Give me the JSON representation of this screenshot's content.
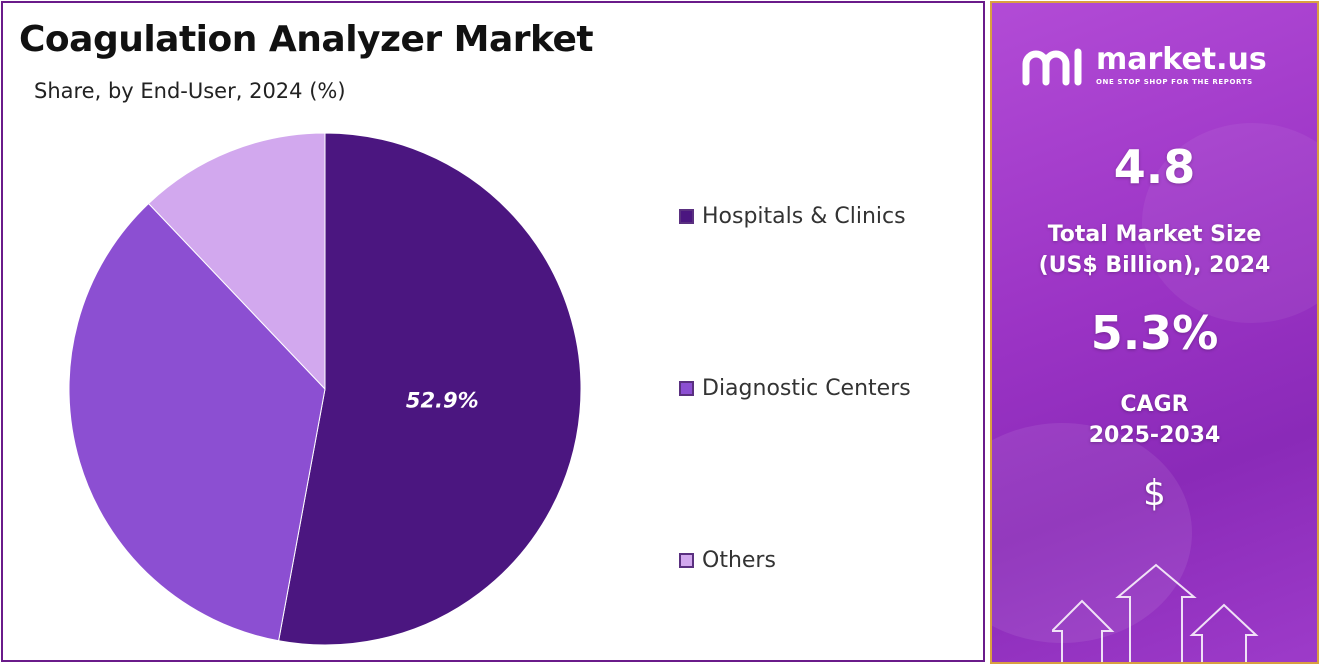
{
  "chart_data": {
    "type": "pie",
    "title": "Coagulation Analyzer Market",
    "subtitle": "Share, by End-User, 2024 (%)",
    "categories": [
      "Hospitals & Clinics",
      "Diagnostic Centers",
      "Others"
    ],
    "values": [
      52.9,
      35.0,
      12.1
    ],
    "labels": [
      "52.9%",
      "",
      ""
    ],
    "colors": [
      "#4b1680",
      "#8c4fd2",
      "#d2a8ee"
    ],
    "legend_position": "right"
  },
  "sidebar": {
    "brand_name": "market.us",
    "brand_tagline": "ONE STOP SHOP FOR THE REPORTS",
    "market_size_value": "4.8",
    "market_size_label_line1": "Total Market Size",
    "market_size_label_line2": "(US$ Billion), 2024",
    "cagr_value": "5.3%",
    "cagr_label_line1": "CAGR",
    "cagr_label_line2": "2025-2034",
    "currency_symbol": "$"
  }
}
